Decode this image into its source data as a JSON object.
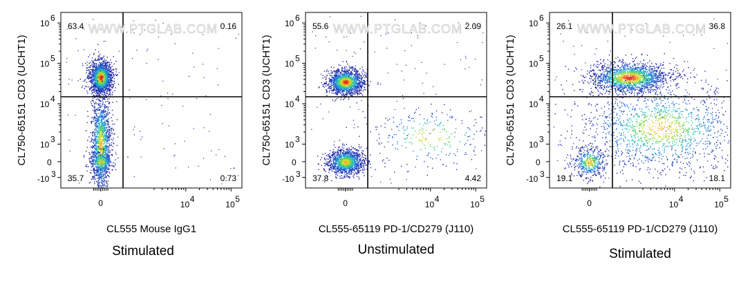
{
  "watermark": "WWW.PTGLAB.COM",
  "axis_tick_labels": {
    "x": {
      "zero": "0",
      "t4": "10",
      "t5": "10",
      "e4": "4",
      "e5": "5"
    },
    "y": {
      "t6": "10",
      "t5": "10",
      "t4": "10",
      "t3": "10",
      "neg": "-10",
      "e6": "6",
      "e5": "5",
      "e4": "4",
      "e3": "3",
      "zero": "0"
    }
  },
  "chart_data": [
    {
      "type": "scatter",
      "subtype": "flow-cytometry-density-dot-plot",
      "caption": "Stimulated",
      "xlabel": "CL555 Mouse IgG1",
      "ylabel": "CL750-65151 CD3 (UCHT1)",
      "scale": "biexponential",
      "quadrant_percent": {
        "upper_left": "63.4",
        "upper_right": "0.16",
        "lower_left": "35.7",
        "lower_right": "0.73"
      },
      "populations": [
        {
          "x": 0,
          "y": 45000,
          "share": 0.55
        },
        {
          "x": 0,
          "y": 1000,
          "share": 0.38
        },
        {
          "x": 0,
          "y": 0,
          "share": 0.06
        }
      ]
    },
    {
      "type": "scatter",
      "subtype": "flow-cytometry-density-dot-plot",
      "caption": "Unstimulated",
      "xlabel": "CL555-65119 PD-1/CD279 (J110)",
      "ylabel": "CL750-65151 CD3 (UCHT1)",
      "scale": "biexponential",
      "quadrant_percent": {
        "upper_left": "55.6",
        "upper_right": "2.09",
        "lower_left": "37.8",
        "lower_right": "4.42"
      },
      "populations": [
        {
          "x": 0,
          "y": 35000,
          "share": 0.55
        },
        {
          "x": 0,
          "y": 0,
          "share": 0.38
        },
        {
          "x": 10000,
          "y": 1500,
          "share": 0.04
        }
      ]
    },
    {
      "type": "scatter",
      "subtype": "flow-cytometry-density-dot-plot",
      "caption": "Stimulated",
      "xlabel": "CL555-65119 PD-1/CD279 (J110)",
      "ylabel": "CL750-65151 CD3 (UCHT1)",
      "scale": "biexponential",
      "quadrant_percent": {
        "upper_left": "26.1",
        "upper_right": "36.8",
        "lower_left": "19.1",
        "lower_right": "18.1"
      },
      "populations": [
        {
          "x": 1000,
          "y": 45000,
          "share": 0.5
        },
        {
          "x": 5000,
          "y": 2500,
          "share": 0.3
        },
        {
          "x": 0,
          "y": 0,
          "share": 0.15
        }
      ]
    }
  ]
}
